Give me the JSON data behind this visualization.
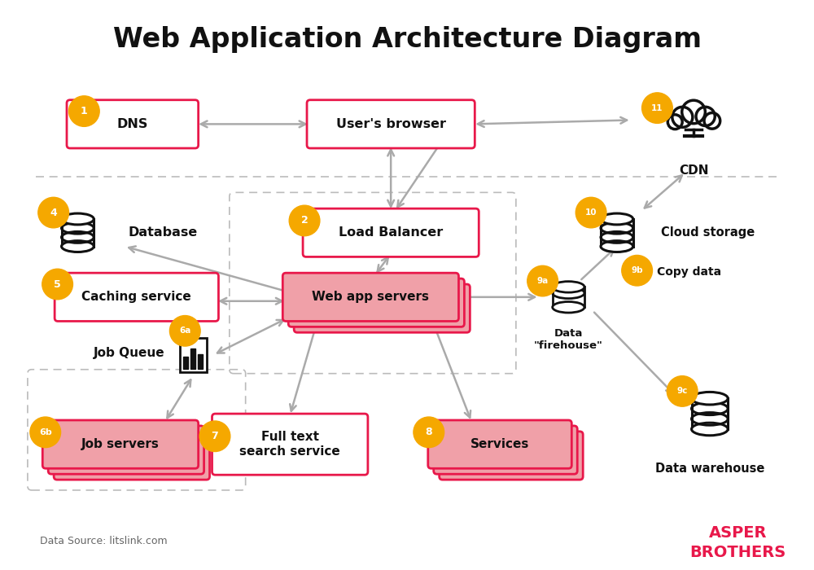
{
  "title": "Web Application Architecture Diagram",
  "title_fontsize": 24,
  "bg_color": "#ffffff",
  "box_border_color": "#e8184a",
  "stacked_box_color": "#f0a0a8",
  "badge_color": "#f5a800",
  "arrow_color": "#aaaaaa",
  "dashed_line_color": "#bbbbbb",
  "data_source": "Data Source: litslink.com",
  "brand_line1": "ASPER",
  "brand_line2": "BROTHERS",
  "brand_color": "#e8184a"
}
